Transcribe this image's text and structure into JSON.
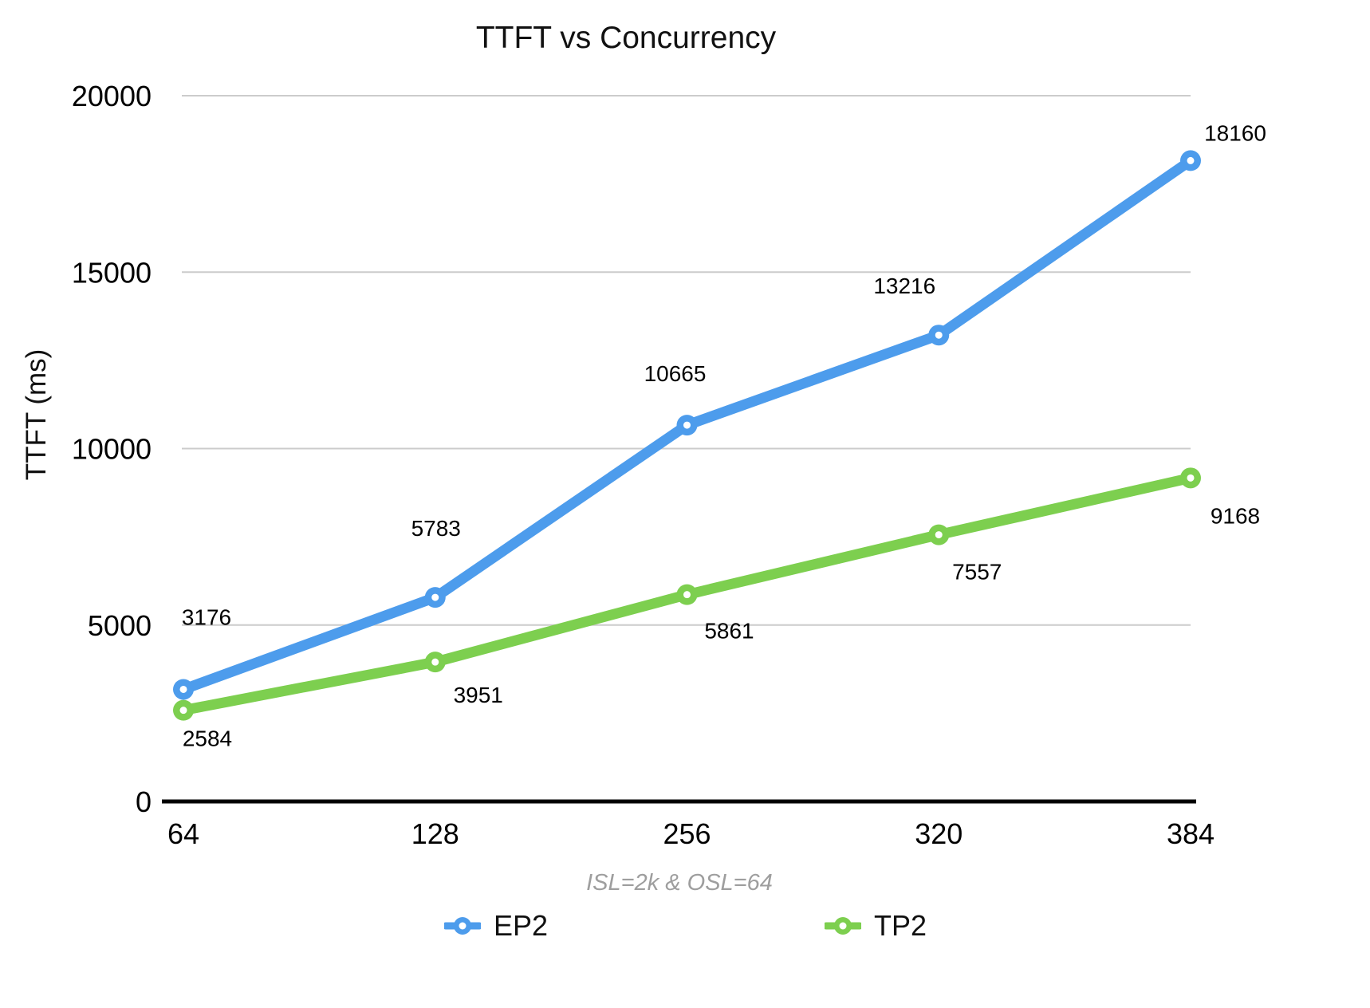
{
  "title": "TTFT vs Concurrency",
  "subtitle": "ISL=2k & OSL=64",
  "chart_data": {
    "type": "line",
    "title": "TTFT vs Concurrency",
    "subtitle": "ISL=2k & OSL=64",
    "ylabel": "TTFT (ms)",
    "xlabel": "",
    "categories": [
      "64",
      "128",
      "256",
      "320",
      "384"
    ],
    "series": [
      {
        "name": "EP2",
        "color": "#4D9CEC",
        "values": [
          3176,
          5783,
          10665,
          13216,
          18160
        ],
        "data_labels": [
          "3176",
          "5783",
          "10665",
          "13216",
          "18160"
        ],
        "label_position": "above"
      },
      {
        "name": "TP2",
        "color": "#7DCF4F",
        "values": [
          2584,
          3951,
          5861,
          7557,
          9168
        ],
        "data_labels": [
          "2584",
          "3951",
          "5861",
          "7557",
          "9168"
        ],
        "label_position": "below"
      }
    ],
    "ylim": [
      0,
      20000
    ],
    "yticks": [
      0,
      5000,
      10000,
      15000,
      20000
    ],
    "grid": "horizontal",
    "grid_color": "#CCCCCC",
    "axis_color": "#000000",
    "subtitle_color": "#9E9E9E",
    "legend_position": "bottom"
  }
}
